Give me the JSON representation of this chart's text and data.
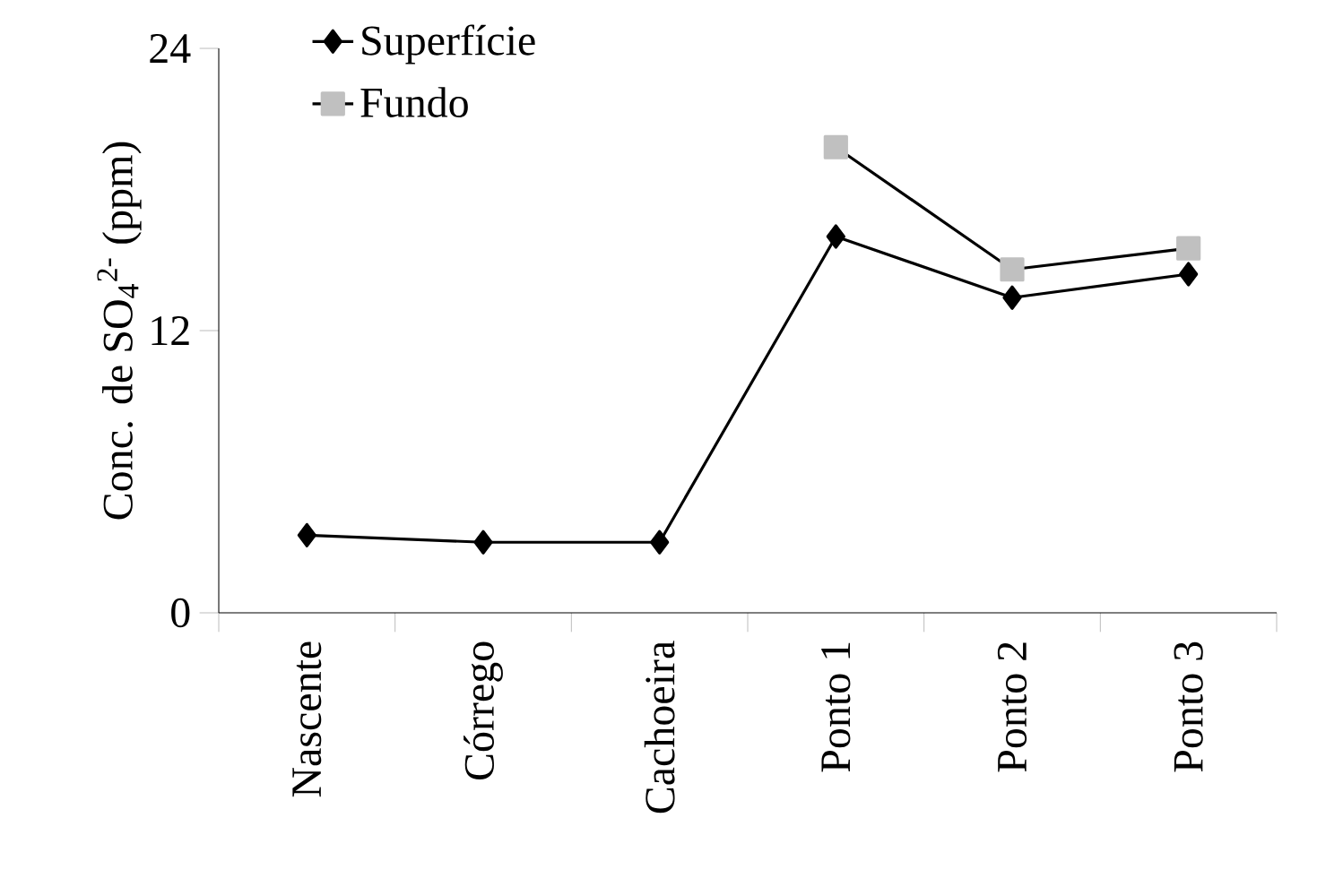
{
  "chart_data": {
    "type": "line",
    "ylabel": "Conc. de SO$_{4}$$^{2-}$ (ppm)",
    "categories": [
      "Nascente",
      "Córrego",
      "Cachoeira",
      "Ponto 1",
      "Ponto 2",
      "Ponto 3"
    ],
    "series": [
      {
        "name": "Superfície",
        "color": "#000000",
        "marker": "diamond",
        "values": [
          3.3,
          3.0,
          3.0,
          16.0,
          13.4,
          14.4
        ]
      },
      {
        "name": "Fundo",
        "color": "#c0c0c0",
        "marker": "square",
        "values": [
          null,
          null,
          null,
          19.8,
          14.6,
          15.5
        ]
      }
    ],
    "ylim": [
      0,
      24
    ],
    "yticks": [
      0,
      12,
      24
    ],
    "grid": false,
    "legend": "top left",
    "line_style": "solid"
  }
}
